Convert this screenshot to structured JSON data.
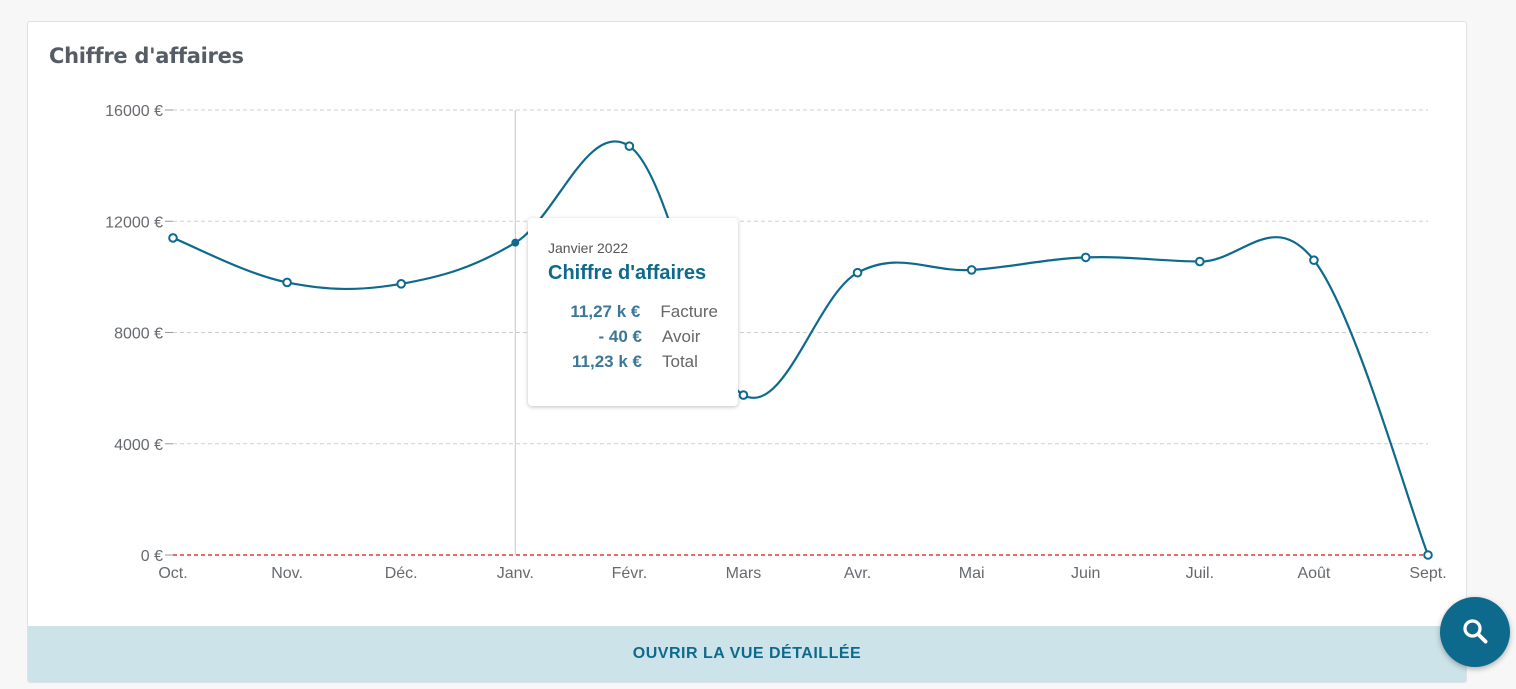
{
  "card": {
    "title": "Chiffre d'affaires",
    "footer_button_label": "OUVRIR LA VUE DÉTAILLÉE"
  },
  "tooltip": {
    "date": "Janvier 2022",
    "title": "Chiffre d'affaires",
    "rows": [
      {
        "value": "11,27 k €",
        "label": "Facture"
      },
      {
        "value": "- 40 €",
        "label": "Avoir"
      },
      {
        "value": "11,23 k €",
        "label": "Total"
      }
    ]
  },
  "fab": {
    "icon": "search-icon"
  },
  "colors": {
    "line": "#0e6a8c",
    "zero_line": "#e53935",
    "grid": "#cfcfcf",
    "footer_bg": "#cde3ea",
    "fab_bg": "#0e6a8c"
  },
  "chart_data": {
    "type": "line",
    "title": "Chiffre d'affaires",
    "xlabel": "",
    "ylabel": "",
    "categories": [
      "Oct.",
      "Nov.",
      "Déc.",
      "Janv.",
      "Févr.",
      "Mars",
      "Avr.",
      "Mai",
      "Juin",
      "Juil.",
      "Août",
      "Sept."
    ],
    "series": [
      {
        "name": "",
        "values": [
          11400,
          9800,
          9750,
          11230,
          14700,
          5750,
          10150,
          10250,
          10700,
          10550,
          10600,
          0
        ]
      }
    ],
    "ylim": [
      0,
      16000
    ],
    "yticks": [
      {
        "value": 0,
        "label": "0 €"
      },
      {
        "value": 4000,
        "label": "4000 €"
      },
      {
        "value": 8000,
        "label": "8000 €"
      },
      {
        "value": 12000,
        "label": "12000 €"
      },
      {
        "value": 16000,
        "label": "16000 €"
      }
    ],
    "grid": true,
    "zero_line": true,
    "highlight_category": "Janv."
  }
}
